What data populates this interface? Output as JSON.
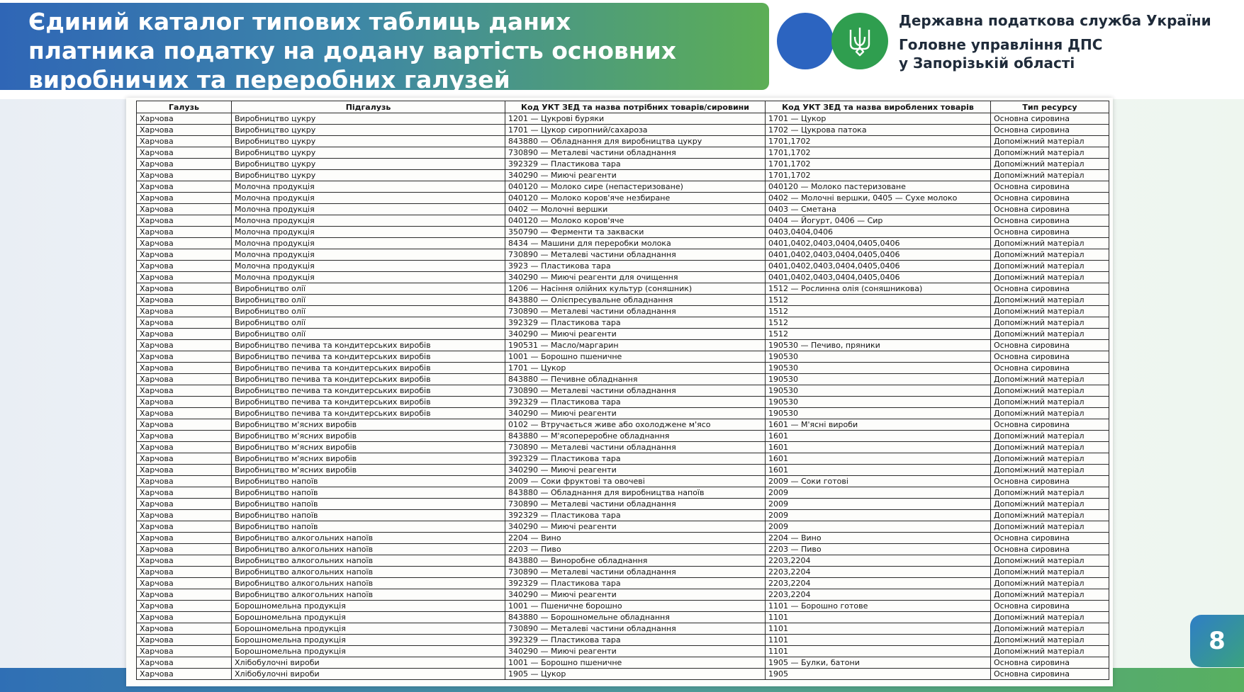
{
  "header": {
    "title_lines": [
      "Єдиний каталог типових таблиць даних",
      "платника податку на додану вартість основних",
      "виробничих та переробних галузей"
    ],
    "org_lines": [
      "Державна податкова служба України",
      "Головне управління ДПС",
      "у Запорізькій області"
    ],
    "colors": {
      "blue": "#2c64c0",
      "green": "#2f9e4f"
    },
    "icons": [
      "trident-icon"
    ]
  },
  "table": {
    "columns": [
      "Галузь",
      "Підгалузь",
      "Код УКТ ЗЕД та назва потрібних товарів/сировини",
      "Код УКТ ЗЕД та назва вироблених товарів",
      "Тип ресурсу"
    ],
    "rows": [
      [
        "Харчова",
        "Виробництво цукру",
        "1201 — Цукрові буряки",
        "1701 — Цукор",
        "Основна сировина"
      ],
      [
        "Харчова",
        "Виробництво цукру",
        "1701 — Цукор сиропний/сахароза",
        "1702 — Цукрова патока",
        "Основна сировина"
      ],
      [
        "Харчова",
        "Виробництво цукру",
        "843880 — Обладнання для виробництва цукру",
        "1701,1702",
        "Допоміжний матеріал"
      ],
      [
        "Харчова",
        "Виробництво цукру",
        "730890 — Металеві частини обладнання",
        "1701,1702",
        "Допоміжний матеріал"
      ],
      [
        "Харчова",
        "Виробництво цукру",
        "392329 — Пластикова тара",
        "1701,1702",
        "Допоміжний матеріал"
      ],
      [
        "Харчова",
        "Виробництво цукру",
        "340290 — Миючі реагенти",
        "1701,1702",
        "Допоміжний матеріал"
      ],
      [
        "Харчова",
        "Молочна продукція",
        "040120 — Молоко сире (непастеризоване)",
        "040120 — Молоко пастеризоване",
        "Основна сировина"
      ],
      [
        "Харчова",
        "Молочна продукція",
        "040120 — Молоко коров'яче незбиране",
        "0402 — Молочні вершки, 0405 — Сухе молоко",
        "Основна сировина"
      ],
      [
        "Харчова",
        "Молочна продукція",
        "0402 — Молочні вершки",
        "0403 — Сметана",
        "Основна сировина"
      ],
      [
        "Харчова",
        "Молочна продукція",
        "040120 — Молоко коров'яче",
        "0404 — Йогурт, 0406 — Сир",
        "Основна сировина"
      ],
      [
        "Харчова",
        "Молочна продукція",
        "350790 — Ферменти та закваски",
        "0403,0404,0406",
        "Основна сировина"
      ],
      [
        "Харчова",
        "Молочна продукція",
        "8434 — Машини для переробки молока",
        "0401,0402,0403,0404,0405,0406",
        "Допоміжний матеріал"
      ],
      [
        "Харчова",
        "Молочна продукція",
        "730890 — Металеві частини обладнання",
        "0401,0402,0403,0404,0405,0406",
        "Допоміжний матеріал"
      ],
      [
        "Харчова",
        "Молочна продукція",
        "3923 — Пластикова тара",
        "0401,0402,0403,0404,0405,0406",
        "Допоміжний матеріал"
      ],
      [
        "Харчова",
        "Молочна продукція",
        "340290 — Миючі реагенти для очищення",
        "0401,0402,0403,0404,0405,0406",
        "Допоміжний матеріал"
      ],
      [
        "Харчова",
        "Виробництво олії",
        "1206 — Насіння олійних культур (соняшник)",
        "1512 — Рослинна олія (соняшникова)",
        "Основна сировина"
      ],
      [
        "Харчова",
        "Виробництво олії",
        "843880 — Олієпресувальне обладнання",
        "1512",
        "Допоміжний матеріал"
      ],
      [
        "Харчова",
        "Виробництво олії",
        "730890 — Металеві частини обладнання",
        "1512",
        "Допоміжний матеріал"
      ],
      [
        "Харчова",
        "Виробництво олії",
        "392329 — Пластикова тара",
        "1512",
        "Допоміжний матеріал"
      ],
      [
        "Харчова",
        "Виробництво олії",
        "340290 — Миючі реагенти",
        "1512",
        "Допоміжний матеріал"
      ],
      [
        "Харчова",
        "Виробництво печива та кондитерських виробів",
        "190531 — Масло/маргарин",
        "190530 — Печиво, пряники",
        "Основна сировина"
      ],
      [
        "Харчова",
        "Виробництво печива та кондитерських виробів",
        "1001 — Борошно пшеничне",
        "190530",
        "Основна сировина"
      ],
      [
        "Харчова",
        "Виробництво печива та кондитерських виробів",
        "1701 — Цукор",
        "190530",
        "Основна сировина"
      ],
      [
        "Харчова",
        "Виробництво печива та кондитерських виробів",
        "843880 — Печивне обладнання",
        "190530",
        "Допоміжний матеріал"
      ],
      [
        "Харчова",
        "Виробництво печива та кондитерських виробів",
        "730890 — Металеві частини обладнання",
        "190530",
        "Допоміжний матеріал"
      ],
      [
        "Харчова",
        "Виробництво печива та кондитерських виробів",
        "392329 — Пластикова тара",
        "190530",
        "Допоміжний матеріал"
      ],
      [
        "Харчова",
        "Виробництво печива та кондитерських виробів",
        "340290 — Миючі реагенти",
        "190530",
        "Допоміжний матеріал"
      ],
      [
        "Харчова",
        "Виробництво м'ясних виробів",
        "0102 — Втручається живе або охолоджене м'ясо",
        "1601 — М'ясні вироби",
        "Основна сировина"
      ],
      [
        "Харчова",
        "Виробництво м'ясних виробів",
        "843880 — М'ясопереробне обладнання",
        "1601",
        "Допоміжний матеріал"
      ],
      [
        "Харчова",
        "Виробництво м'ясних виробів",
        "730890 — Металеві частини обладнання",
        "1601",
        "Допоміжний матеріал"
      ],
      [
        "Харчова",
        "Виробництво м'ясних виробів",
        "392329 — Пластикова тара",
        "1601",
        "Допоміжний матеріал"
      ],
      [
        "Харчова",
        "Виробництво м'ясних виробів",
        "340290 — Миючі реагенти",
        "1601",
        "Допоміжний матеріал"
      ],
      [
        "Харчова",
        "Виробництво напоїв",
        "2009 — Соки фруктові та овочеві",
        "2009 — Соки готові",
        "Основна сировина"
      ],
      [
        "Харчова",
        "Виробництво напоїв",
        "843880 — Обладнання для виробництва напоїв",
        "2009",
        "Допоміжний матеріал"
      ],
      [
        "Харчова",
        "Виробництво напоїв",
        "730890 — Металеві частини обладнання",
        "2009",
        "Допоміжний матеріал"
      ],
      [
        "Харчова",
        "Виробництво напоїв",
        "392329 — Пластикова тара",
        "2009",
        "Допоміжний матеріал"
      ],
      [
        "Харчова",
        "Виробництво напоїв",
        "340290 — Миючі реагенти",
        "2009",
        "Допоміжний матеріал"
      ],
      [
        "Харчова",
        "Виробництво алкогольних напоїв",
        "2204 — Вино",
        "2204 — Вино",
        "Основна сировина"
      ],
      [
        "Харчова",
        "Виробництво алкогольних напоїв",
        "2203 — Пиво",
        "2203 — Пиво",
        "Основна сировина"
      ],
      [
        "Харчова",
        "Виробництво алкогольних напоїв",
        "843880 — Виноробне обладнання",
        "2203,2204",
        "Допоміжний матеріал"
      ],
      [
        "Харчова",
        "Виробництво алкогольних напоїв",
        "730890 — Металеві частини обладнання",
        "2203,2204",
        "Допоміжний матеріал"
      ],
      [
        "Харчова",
        "Виробництво алкогольних напоїв",
        "392329 — Пластикова тара",
        "2203,2204",
        "Допоміжний матеріал"
      ],
      [
        "Харчова",
        "Виробництво алкогольних напоїв",
        "340290 — Миючі реагенти",
        "2203,2204",
        "Допоміжний матеріал"
      ],
      [
        "Харчова",
        "Борошномельна продукція",
        "1001 — Пшеничне борошно",
        "1101 — Борошно готове",
        "Основна сировина"
      ],
      [
        "Харчова",
        "Борошномельна продукція",
        "843880 — Борошномельне обладнання",
        "1101",
        "Допоміжний матеріал"
      ],
      [
        "Харчова",
        "Борошномельна продукція",
        "730890 — Металеві частини обладнання",
        "1101",
        "Допоміжний матеріал"
      ],
      [
        "Харчова",
        "Борошномельна продукція",
        "392329 — Пластикова тара",
        "1101",
        "Допоміжний матеріал"
      ],
      [
        "Харчова",
        "Борошномельна продукція",
        "340290 — Миючі реагенти",
        "1101",
        "Допоміжний матеріал"
      ],
      [
        "Харчова",
        "Хлібобулочні вироби",
        "1001 — Борошно пшеничне",
        "1905 — Булки, батони",
        "Основна сировина"
      ],
      [
        "Харчова",
        "Хлібобулочні вироби",
        "1905 — Цукор",
        "1905",
        "Основна сировина"
      ]
    ]
  },
  "footer": {
    "page_number": "8"
  }
}
